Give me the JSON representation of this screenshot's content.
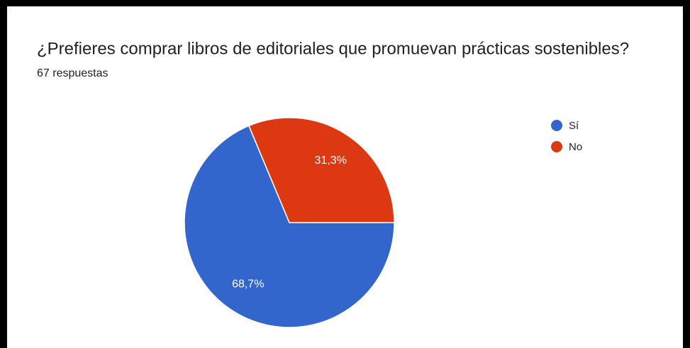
{
  "chart_data": {
    "type": "pie",
    "title": "¿Prefieres comprar libros de editoriales que promuevan prácticas sostenibles?",
    "subtitle": "67 respuestas",
    "categories": [
      "Sí",
      "No"
    ],
    "values": [
      68.7,
      31.3
    ],
    "value_labels": [
      "68,7%",
      "31,3%"
    ],
    "colors": [
      "#3366cc",
      "#dc3912"
    ],
    "legend": "right"
  }
}
